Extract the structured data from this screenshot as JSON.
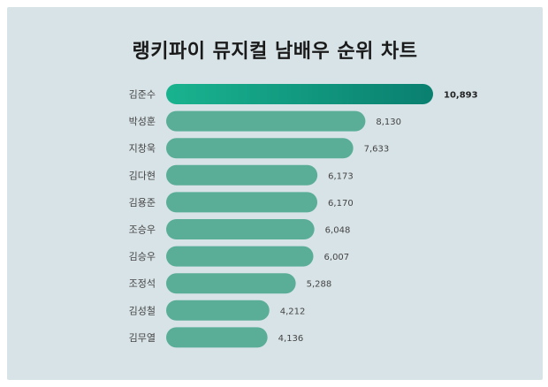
{
  "chart_data": {
    "type": "bar",
    "orientation": "horizontal",
    "title": "랭키파이 뮤지컬 남배우 순위 차트",
    "categories": [
      "김준수",
      "박성훈",
      "지창욱",
      "김다현",
      "김용준",
      "조승우",
      "김승우",
      "조정석",
      "김성철",
      "김무열"
    ],
    "values": [
      10893,
      8130,
      7633,
      6173,
      6170,
      6048,
      6007,
      5288,
      4212,
      4136
    ],
    "value_labels": [
      "10,893",
      "8,130",
      "7,633",
      "6,173",
      "6,170",
      "6,048",
      "6,007",
      "5,288",
      "4,212",
      "4,136"
    ],
    "colors": {
      "bar": "#5aae98",
      "top_start": "#19b38f",
      "top_end": "#0a7f70",
      "background": "#d8e3e7"
    },
    "grid": false,
    "legend": "none"
  }
}
